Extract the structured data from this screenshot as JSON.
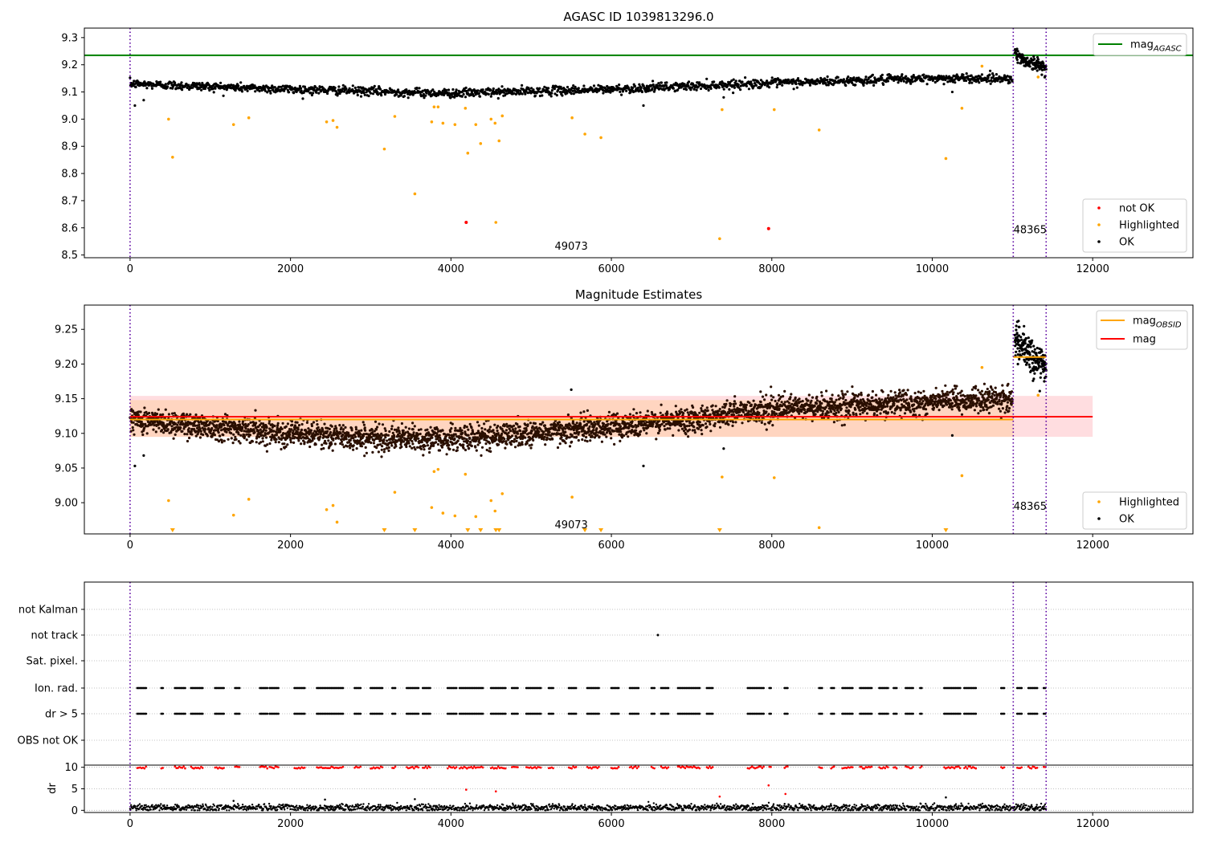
{
  "chart_data": [
    {
      "type": "scatter",
      "title": "AGASC ID 1039813296.0",
      "xlim": [
        -570,
        13250
      ],
      "ylim": [
        8.49,
        9.335
      ],
      "xticks": [
        0,
        2000,
        4000,
        6000,
        8000,
        10000,
        12000
      ],
      "xtick_labels": [
        "0",
        "2000",
        "4000",
        "6000",
        "8000",
        "10000",
        "12000"
      ],
      "yticks": [
        8.5,
        8.6,
        8.7,
        8.8,
        8.9,
        9.0,
        9.1,
        9.2,
        9.3
      ],
      "ytick_labels": [
        "8.5",
        "8.6",
        "8.7",
        "8.8",
        "8.9",
        "9.0",
        "9.1",
        "9.2",
        "9.3"
      ],
      "colors": {
        "ok": "#000000",
        "highlighted": "#ffa500",
        "not_ok": "#ff0000",
        "mag_agasc": "#008000",
        "obs_boundary": "#5a00a0"
      },
      "obs_boundaries": [
        0,
        11010,
        11420
      ],
      "obs_labels": [
        {
          "text": "49073",
          "x": 5500,
          "y": 8.52
        },
        {
          "text": "48365",
          "x": 11220,
          "y": 8.58
        }
      ],
      "mag_agasc": 9.235,
      "ok_trend": {
        "x": [
          0,
          2000,
          4000,
          6000,
          7700,
          10000,
          11000
        ],
        "y": [
          9.13,
          9.11,
          9.095,
          9.11,
          9.13,
          9.15,
          9.15
        ],
        "scatter": 0.008
      },
      "ok_trend_2": {
        "x": [
          11030,
          11120,
          11250,
          11420
        ],
        "y": [
          9.245,
          9.22,
          9.205,
          9.19
        ],
        "scatter": 0.012
      },
      "ok_extra": [
        {
          "x": 60,
          "y": 9.05
        },
        {
          "x": 170,
          "y": 9.07
        },
        {
          "x": 6400,
          "y": 9.05
        },
        {
          "x": 7400,
          "y": 9.08
        },
        {
          "x": 10250,
          "y": 9.1
        }
      ],
      "highlighted": [
        {
          "x": 480,
          "y": 9.0
        },
        {
          "x": 530,
          "y": 8.86
        },
        {
          "x": 1290,
          "y": 8.98
        },
        {
          "x": 1480,
          "y": 9.005
        },
        {
          "x": 2450,
          "y": 8.99
        },
        {
          "x": 2530,
          "y": 8.995
        },
        {
          "x": 2580,
          "y": 8.97
        },
        {
          "x": 3170,
          "y": 8.89
        },
        {
          "x": 3300,
          "y": 9.01
        },
        {
          "x": 3550,
          "y": 8.725
        },
        {
          "x": 3760,
          "y": 8.99
        },
        {
          "x": 3790,
          "y": 9.045
        },
        {
          "x": 3840,
          "y": 9.045
        },
        {
          "x": 3900,
          "y": 8.985
        },
        {
          "x": 4050,
          "y": 8.98
        },
        {
          "x": 4180,
          "y": 9.04
        },
        {
          "x": 4210,
          "y": 8.875
        },
        {
          "x": 4310,
          "y": 8.98
        },
        {
          "x": 4370,
          "y": 8.91
        },
        {
          "x": 4500,
          "y": 9.0
        },
        {
          "x": 4550,
          "y": 8.985
        },
        {
          "x": 4560,
          "y": 8.62
        },
        {
          "x": 4600,
          "y": 8.92
        },
        {
          "x": 4640,
          "y": 9.012
        },
        {
          "x": 5510,
          "y": 9.005
        },
        {
          "x": 5670,
          "y": 8.945
        },
        {
          "x": 5870,
          "y": 8.932
        },
        {
          "x": 7350,
          "y": 8.56
        },
        {
          "x": 7380,
          "y": 9.035
        },
        {
          "x": 8030,
          "y": 9.035
        },
        {
          "x": 8590,
          "y": 8.96
        },
        {
          "x": 10170,
          "y": 8.855
        },
        {
          "x": 10370,
          "y": 9.04
        },
        {
          "x": 10620,
          "y": 9.195
        },
        {
          "x": 11320,
          "y": 9.155
        }
      ],
      "not_ok": [
        {
          "x": 4190,
          "y": 8.62
        },
        {
          "x": 7960,
          "y": 8.597
        }
      ],
      "legend": {
        "position": "top-right",
        "items": [
          {
            "label": "mag",
            "subscript": "AGASC",
            "color": "#008000"
          }
        ]
      },
      "legend2": {
        "position": "lower-right",
        "items": [
          {
            "label": "not OK",
            "color": "#ff0000"
          },
          {
            "label": "Highlighted",
            "color": "#ffa500"
          },
          {
            "label": "OK",
            "color": "#000000"
          }
        ]
      }
    },
    {
      "type": "scatter",
      "title": "Magnitude Estimates",
      "xlim": [
        -570,
        13250
      ],
      "ylim": [
        8.955,
        9.285
      ],
      "xticks": [
        0,
        2000,
        4000,
        6000,
        8000,
        10000,
        12000
      ],
      "xtick_labels": [
        "0",
        "2000",
        "4000",
        "6000",
        "8000",
        "10000",
        "12000"
      ],
      "yticks": [
        9.0,
        9.05,
        9.1,
        9.15,
        9.2,
        9.25
      ],
      "ytick_labels": [
        "9.00",
        "9.05",
        "9.10",
        "9.15",
        "9.20",
        "9.25"
      ],
      "colors": {
        "ok": "#000000",
        "highlighted": "#ffa500",
        "mag": "#ff0000",
        "mag_obsid": "#ffa500",
        "band_mag": "#ffdde0",
        "band_obsid": "#ffd3b8"
      },
      "obs_boundaries": [
        0,
        11010,
        11420
      ],
      "obs_labels": [
        {
          "text": "49073",
          "x": 5500,
          "y": 8.963
        },
        {
          "text": "48365",
          "x": 11220,
          "y": 8.99
        }
      ],
      "mag": {
        "value": 9.124,
        "x_range": [
          0,
          12000
        ],
        "band": [
          9.095,
          9.154
        ]
      },
      "mag_obsid": [
        {
          "value": 9.12,
          "x_range": [
            0,
            11010
          ],
          "band": [
            9.095,
            9.148
          ]
        },
        {
          "value": 9.21,
          "x_range": [
            11010,
            11420
          ]
        }
      ],
      "ok_trend": {
        "x": [
          0,
          1000,
          2000,
          3000,
          4000,
          5000,
          6000,
          7000,
          7700,
          9000,
          10000,
          11000
        ],
        "y": [
          9.12,
          9.11,
          9.1,
          9.093,
          9.092,
          9.1,
          9.11,
          9.12,
          9.133,
          9.14,
          9.145,
          9.15
        ],
        "scatter": 0.009
      },
      "ok_trend_2": {
        "x": [
          11030,
          11100,
          11250,
          11420
        ],
        "y": [
          9.24,
          9.225,
          9.21,
          9.195
        ],
        "scatter": 0.012
      },
      "ok_extra": [
        {
          "x": 60,
          "y": 9.053
        },
        {
          "x": 170,
          "y": 9.068
        },
        {
          "x": 6400,
          "y": 9.053
        },
        {
          "x": 7400,
          "y": 9.078
        },
        {
          "x": 10250,
          "y": 9.097
        },
        {
          "x": 5500,
          "y": 9.163
        }
      ],
      "highlighted": [
        {
          "x": 480,
          "y": 9.003
        },
        {
          "x": 1290,
          "y": 8.982
        },
        {
          "x": 1480,
          "y": 9.005
        },
        {
          "x": 2450,
          "y": 8.99
        },
        {
          "x": 2530,
          "y": 8.996
        },
        {
          "x": 2580,
          "y": 8.972
        },
        {
          "x": 3300,
          "y": 9.015
        },
        {
          "x": 3760,
          "y": 8.993
        },
        {
          "x": 3790,
          "y": 9.045
        },
        {
          "x": 3840,
          "y": 9.048
        },
        {
          "x": 3900,
          "y": 8.985
        },
        {
          "x": 4050,
          "y": 8.981
        },
        {
          "x": 4180,
          "y": 9.041
        },
        {
          "x": 4310,
          "y": 8.98
        },
        {
          "x": 4500,
          "y": 9.003
        },
        {
          "x": 4550,
          "y": 8.988
        },
        {
          "x": 4640,
          "y": 9.013
        },
        {
          "x": 5510,
          "y": 9.008
        },
        {
          "x": 7380,
          "y": 9.037
        },
        {
          "x": 8030,
          "y": 9.036
        },
        {
          "x": 8590,
          "y": 8.964
        },
        {
          "x": 10370,
          "y": 9.039
        },
        {
          "x": 10620,
          "y": 9.195
        },
        {
          "x": 11320,
          "y": 9.155
        }
      ],
      "highlighted_below_range": [
        530,
        3170,
        3550,
        4210,
        4370,
        4560,
        4600,
        5670,
        5870,
        7350,
        10170
      ],
      "legend": {
        "position": "top-right",
        "items": [
          {
            "label": "mag",
            "subscript": "OBSID",
            "color": "#ffa500"
          },
          {
            "label": "mag",
            "color": "#ff0000"
          }
        ]
      },
      "legend2": {
        "position": "lower-right",
        "items": [
          {
            "label": "Highlighted",
            "color": "#ffa500"
          },
          {
            "label": "OK",
            "color": "#000000"
          }
        ]
      }
    },
    {
      "type": "scatter",
      "title": "",
      "xlim": [
        -570,
        13250
      ],
      "categories": [
        "not Kalman",
        "not track",
        "Sat. pixel.",
        "Ion. rad.",
        "dr > 5",
        "OBS not OK"
      ],
      "obs_boundaries": [
        0,
        11010,
        11420
      ],
      "grid": true,
      "colors": {
        "flag": "#000000",
        "dr_ok": "#000000",
        "dr_high": "#ff0000"
      },
      "not_track_points": [
        6580
      ],
      "ion_rad_segments": [
        [
          90,
          200
        ],
        [
          390,
          420
        ],
        [
          560,
          700
        ],
        [
          760,
          920
        ],
        [
          1060,
          1170
        ],
        [
          1310,
          1380
        ],
        [
          1620,
          1720
        ],
        [
          1740,
          1860
        ],
        [
          2050,
          2180
        ],
        [
          2330,
          2660
        ],
        [
          2800,
          2880
        ],
        [
          3000,
          3150
        ],
        [
          3270,
          3320
        ],
        [
          3450,
          3600
        ],
        [
          3650,
          3750
        ],
        [
          3960,
          4070
        ],
        [
          4110,
          4410
        ],
        [
          4500,
          4680
        ],
        [
          4760,
          4840
        ],
        [
          4940,
          5120
        ],
        [
          5220,
          5290
        ],
        [
          5470,
          5560
        ],
        [
          5700,
          5860
        ],
        [
          6000,
          6100
        ],
        [
          6230,
          6350
        ],
        [
          6500,
          6550
        ],
        [
          6620,
          6720
        ],
        [
          6830,
          7100
        ],
        [
          7190,
          7270
        ],
        [
          7700,
          7910
        ],
        [
          7970,
          8000
        ],
        [
          8160,
          8200
        ],
        [
          8590,
          8630
        ],
        [
          8740,
          8780
        ],
        [
          8880,
          9020
        ],
        [
          9100,
          9250
        ],
        [
          9340,
          9460
        ],
        [
          9520,
          9570
        ],
        [
          9670,
          9760
        ],
        [
          9850,
          9880
        ],
        [
          10150,
          10350
        ],
        [
          10400,
          10560
        ],
        [
          10860,
          10910
        ],
        [
          11060,
          11130
        ],
        [
          11200,
          11320
        ],
        [
          11390,
          11420
        ]
      ],
      "dr_panel": {
        "ylim": [
          -0.5,
          10.5
        ],
        "yticks": [
          0,
          5,
          10
        ],
        "ytick_labels": [
          "0",
          "5",
          "10"
        ],
        "ylabel": "dr",
        "baseline": 0.6,
        "scatter": 0.4
      },
      "dr_outliers": [
        {
          "x": 4190,
          "y": 4.8
        },
        {
          "x": 4560,
          "y": 4.4
        },
        {
          "x": 7350,
          "y": 3.2
        },
        {
          "x": 7960,
          "y": 5.8
        },
        {
          "x": 8170,
          "y": 3.8
        },
        {
          "x": 10170,
          "y": 3.0
        },
        {
          "x": 2430,
          "y": 2.5
        },
        {
          "x": 3550,
          "y": 2.6
        },
        {
          "x": 1290,
          "y": 2.2
        }
      ],
      "xticks": [
        0,
        2000,
        4000,
        6000,
        8000,
        10000,
        12000
      ],
      "xtick_labels": [
        "0",
        "2000",
        "4000",
        "6000",
        "8000",
        "10000",
        "12000"
      ]
    }
  ]
}
